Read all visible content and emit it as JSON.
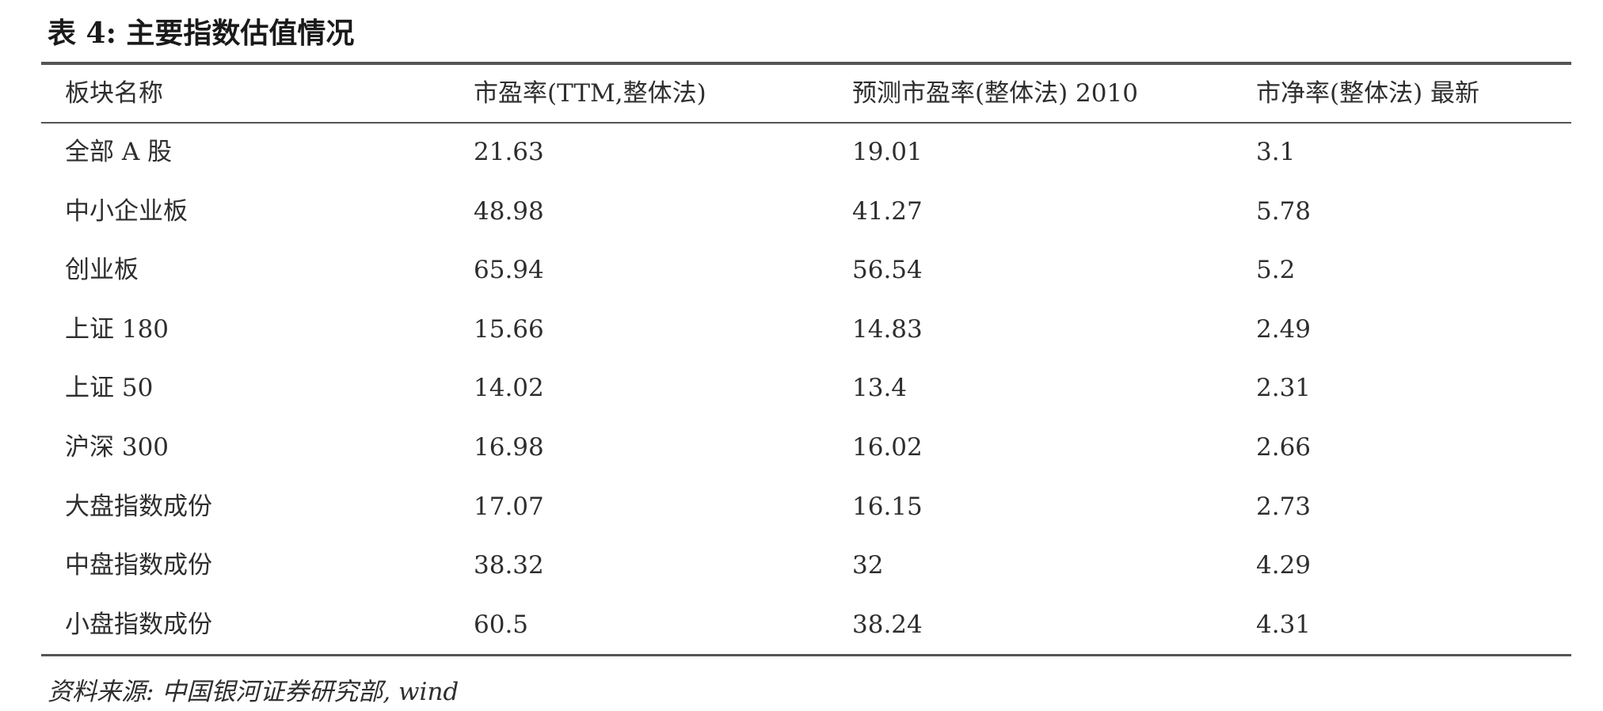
{
  "caption": "表 4:  主要指数估值情况",
  "table": {
    "headers": [
      "板块名称",
      "市盈率(TTM,整体法)",
      "预测市盈率(整体法) 2010",
      "市净率(整体法) 最新"
    ],
    "rows": [
      [
        "全部 A 股",
        "21.63",
        "19.01",
        "3.1"
      ],
      [
        "中小企业板",
        "48.98",
        "41.27",
        "5.78"
      ],
      [
        "创业板",
        "65.94",
        "56.54",
        "5.2"
      ],
      [
        "上证 180",
        "15.66",
        "14.83",
        "2.49"
      ],
      [
        "上证 50",
        "14.02",
        "13.4",
        "2.31"
      ],
      [
        "沪深 300",
        "16.98",
        "16.02",
        "2.66"
      ],
      [
        "大盘指数成份",
        "17.07",
        "16.15",
        "2.73"
      ],
      [
        "中盘指数成份",
        "38.32",
        "32",
        "4.29"
      ],
      [
        "小盘指数成份",
        "60.5",
        "38.24",
        "4.31"
      ]
    ]
  },
  "source": "资料来源:  中国银河证券研究部, wind"
}
